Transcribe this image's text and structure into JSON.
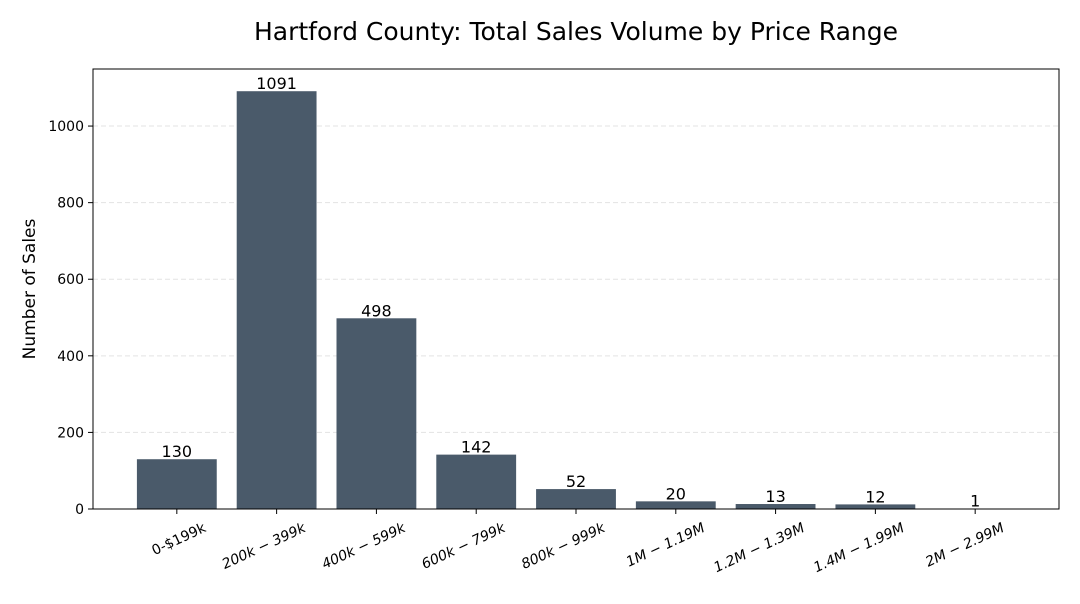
{
  "chart_data": {
    "type": "bar",
    "title": "Hartford County: Total Sales Volume by Price Range",
    "xlabel": "",
    "ylabel": "Number of Sales",
    "categories": [
      "0-$199k",
      "200k − 399k",
      "400k − 599k",
      "600k − 799k",
      "800k − 999k",
      "1M − 1.19M",
      "1.2M − 1.39M",
      "1.4M − 1.99M",
      "2M − 2.99M"
    ],
    "values": [
      130,
      1091,
      498,
      142,
      52,
      20,
      13,
      12,
      1
    ],
    "ylim": [
      0,
      1149
    ],
    "yticks": [
      0,
      200,
      400,
      600,
      800,
      1000
    ],
    "grid": "y dashed",
    "bar_color": "#4a5a6a",
    "data_labels": true
  }
}
